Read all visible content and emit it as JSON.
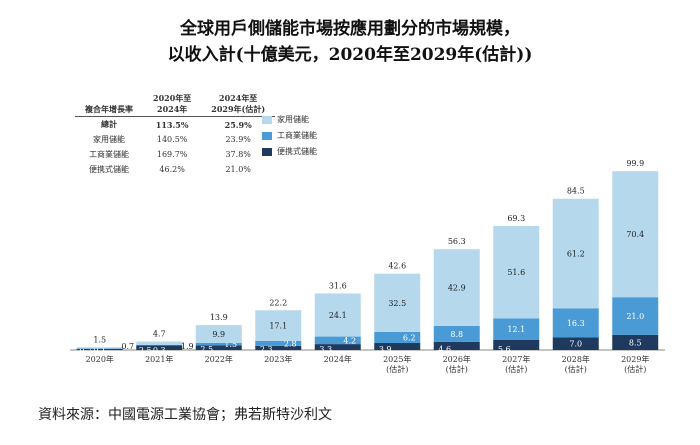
{
  "chart_data": {
    "type": "bar",
    "stacked": true,
    "title": "全球用戶側儲能市場按應用劃分的市場規模，",
    "subtitle": "以收入計(十億美元，2020年至2029年(估計))",
    "categories": [
      "2020年",
      "2021年",
      "2022年",
      "2023年",
      "2024年",
      "2025年\n(估計)",
      "2026年\n(估計)",
      "2027年\n(估計)",
      "2028年\n(估計)",
      "2029年\n(估計)"
    ],
    "series": [
      {
        "name": "便携式儲能",
        "color": "#1f3a5f",
        "values": [
          0.7,
          2.5,
          2.5,
          2.3,
          3.3,
          3.9,
          4.6,
          5.6,
          7.0,
          8.5
        ]
      },
      {
        "name": "工商業儲能",
        "color": "#4a9ad6",
        "values": [
          0.1,
          0.3,
          1.5,
          2.8,
          4.2,
          6.2,
          8.8,
          12.1,
          16.3,
          21.0
        ]
      },
      {
        "name": "家用儲能",
        "color": "#b5d8ec",
        "values": [
          0.7,
          1.9,
          9.9,
          17.1,
          24.1,
          32.5,
          42.9,
          51.6,
          61.2,
          70.4
        ]
      }
    ],
    "totals": [
      1.5,
      4.7,
      13.9,
      22.2,
      31.6,
      42.6,
      56.3,
      69.3,
      84.5,
      99.9
    ],
    "ylim": [
      0,
      100
    ],
    "legend": "top-left",
    "cagr_table": {
      "headers": [
        "複合年增長率",
        "2020年至\n2024年",
        "2024年至\n2029年(估計)"
      ],
      "rows": [
        [
          "總計",
          "113.5%",
          "25.9%"
        ],
        [
          "家用儲能",
          "140.5%",
          "23.9%"
        ],
        [
          "工商業儲能",
          "169.7%",
          "37.8%"
        ],
        [
          "便携式儲能",
          "46.2%",
          "21.0%"
        ]
      ]
    }
  },
  "source": "資料來源：中國電源工業協會；弗若斯特沙利文"
}
